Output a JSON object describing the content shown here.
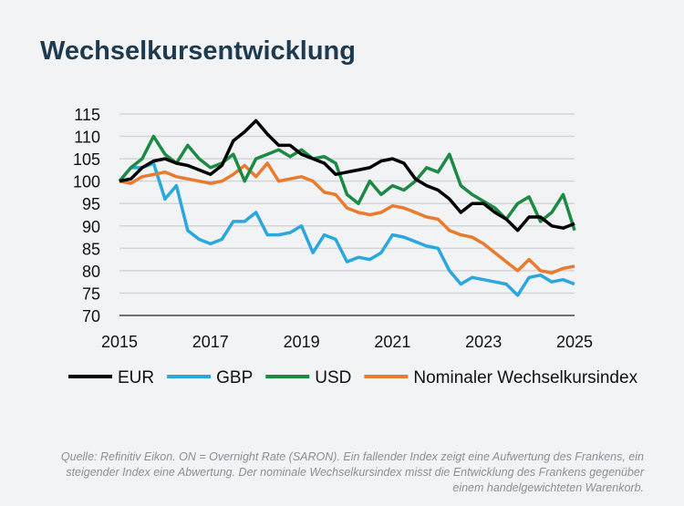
{
  "title": "Wechselkursentwicklung",
  "source": "Quelle: Refinitiv Eikon. ON = Overnight Rate (SARON). Ein fallender Index zeigt eine Aufwertung des Frankens, ein steigender Index eine Abwertung. Der nominale Wechselkursindex misst die Entwicklung des Frankens gegenüber einem handelgewichteten Warenkorb.",
  "chart_data": {
    "type": "line",
    "title": "Wechselkursentwicklung",
    "xlim": [
      2015,
      2025
    ],
    "ylim": [
      70,
      115
    ],
    "xticks": [
      2015,
      2017,
      2019,
      2021,
      2023,
      2025
    ],
    "yticks": [
      70,
      75,
      80,
      85,
      90,
      95,
      100,
      105,
      110,
      115
    ],
    "grid": true,
    "legend": "bottom",
    "x": [
      2015,
      2015.25,
      2015.5,
      2015.75,
      2016,
      2016.25,
      2016.5,
      2016.75,
      2017,
      2017.25,
      2017.5,
      2017.75,
      2018,
      2018.25,
      2018.5,
      2018.75,
      2019,
      2019.25,
      2019.5,
      2019.75,
      2020,
      2020.25,
      2020.5,
      2020.75,
      2021,
      2021.25,
      2021.5,
      2021.75,
      2022,
      2022.25,
      2022.5,
      2022.75,
      2023,
      2023.25,
      2023.5,
      2023.75,
      2024,
      2024.25,
      2024.5,
      2024.75,
      2025
    ],
    "series": [
      {
        "name": "EUR",
        "color": "#000000",
        "values": [
          100,
          100.5,
          103,
          104.5,
          105,
          104,
          103.5,
          102.5,
          101.5,
          103.5,
          109,
          111,
          113.5,
          110.5,
          108,
          108,
          106,
          105,
          104,
          101.5,
          102,
          102.5,
          103,
          104.5,
          105,
          104,
          100.5,
          99,
          98,
          96,
          93,
          95,
          95,
          93,
          91.5,
          89,
          92,
          92,
          90,
          89.5,
          90.5
        ]
      },
      {
        "name": "GBP",
        "color": "#2aa7df",
        "values": [
          100,
          103,
          103,
          104,
          96,
          99,
          89,
          87,
          86,
          87,
          91,
          91,
          93,
          88,
          88,
          88.5,
          90,
          84,
          88,
          87,
          82,
          83,
          82.5,
          84,
          88,
          87.5,
          86.5,
          85.5,
          85,
          80,
          77,
          78.5,
          78,
          77.5,
          77,
          74.5,
          78.5,
          79,
          77.5,
          78,
          77
        ]
      },
      {
        "name": "USD",
        "color": "#1b8a44",
        "values": [
          100,
          103,
          105,
          110,
          106,
          104,
          108,
          105,
          103,
          104,
          106,
          100,
          105,
          106,
          107,
          105.5,
          107,
          105,
          105.5,
          104,
          97,
          95,
          100,
          97,
          99,
          98,
          100,
          103,
          102,
          106,
          99,
          97,
          95.5,
          94,
          91.5,
          95,
          96.5,
          91,
          93,
          97,
          89
        ]
      },
      {
        "name": "Nominaler Wechselkursindex",
        "color": "#ec7a2e",
        "values": [
          100,
          99.5,
          101,
          101.5,
          102,
          101,
          100.5,
          100,
          99.5,
          100,
          101.5,
          103.5,
          101,
          104,
          100,
          100.5,
          101,
          100,
          97.5,
          97,
          94,
          93,
          92.5,
          93,
          94.5,
          94,
          93,
          92,
          91.5,
          89,
          88,
          87.5,
          86,
          84,
          82,
          80,
          82.5,
          80,
          79.5,
          80.5,
          81
        ]
      }
    ]
  }
}
